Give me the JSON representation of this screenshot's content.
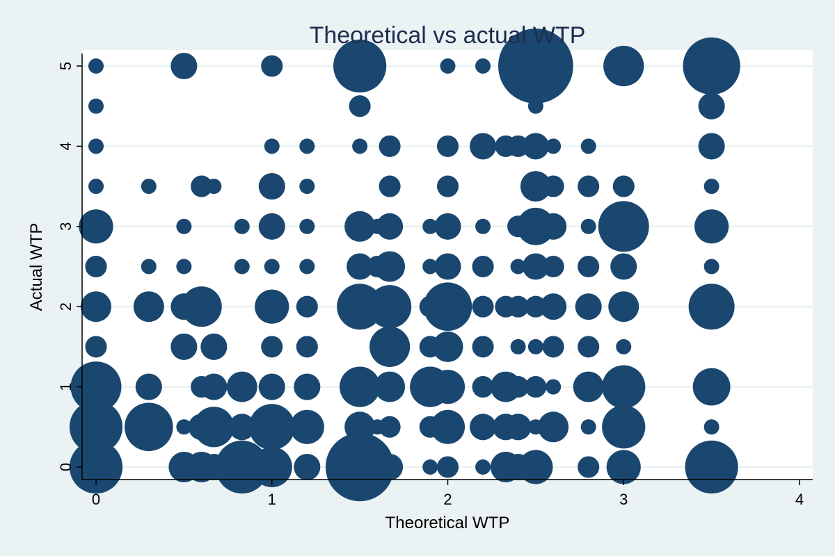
{
  "chart_data": {
    "type": "scatter",
    "title": "Theoretical vs actual WTP",
    "xlabel": "Theoretical WTP",
    "ylabel": "Actual WTP",
    "xlim": [
      -0.08,
      4.08
    ],
    "ylim": [
      -0.3,
      5.3
    ],
    "x_ticks": [
      0,
      1,
      2,
      3,
      4
    ],
    "y_ticks": [
      0,
      1,
      2,
      3,
      4,
      5
    ],
    "grid": "horizontal",
    "marker_color": "#1a476f",
    "background_color": "#eaf2f3",
    "plot_background_color": "#ffffff",
    "gridline_color": "#eaf2f3",
    "size_meaning": "marker area proportional to number of observations (relative weight)",
    "points": [
      {
        "x": 0,
        "y": 5,
        "w": 1
      },
      {
        "x": 0.5,
        "y": 5,
        "w": 3
      },
      {
        "x": 1,
        "y": 5,
        "w": 2
      },
      {
        "x": 1.5,
        "y": 5,
        "w": 12
      },
      {
        "x": 1.6,
        "y": 5,
        "w": 1
      },
      {
        "x": 2,
        "y": 5,
        "w": 1
      },
      {
        "x": 2.2,
        "y": 5,
        "w": 1
      },
      {
        "x": 2.5,
        "y": 5,
        "w": 24
      },
      {
        "x": 3,
        "y": 5,
        "w": 7
      },
      {
        "x": 3.5,
        "y": 5,
        "w": 14
      },
      {
        "x": 0,
        "y": 4.5,
        "w": 1
      },
      {
        "x": 1.5,
        "y": 4.5,
        "w": 2
      },
      {
        "x": 2.5,
        "y": 4.5,
        "w": 1
      },
      {
        "x": 3.5,
        "y": 4.5,
        "w": 3
      },
      {
        "x": 0,
        "y": 4,
        "w": 1
      },
      {
        "x": 1,
        "y": 4,
        "w": 1
      },
      {
        "x": 1.2,
        "y": 4,
        "w": 1
      },
      {
        "x": 1.5,
        "y": 4,
        "w": 1
      },
      {
        "x": 1.67,
        "y": 4,
        "w": 2
      },
      {
        "x": 2,
        "y": 4,
        "w": 2
      },
      {
        "x": 2.2,
        "y": 4,
        "w": 3
      },
      {
        "x": 2.33,
        "y": 4,
        "w": 2
      },
      {
        "x": 2.4,
        "y": 4,
        "w": 2
      },
      {
        "x": 2.5,
        "y": 4,
        "w": 3
      },
      {
        "x": 2.6,
        "y": 4,
        "w": 1
      },
      {
        "x": 2.8,
        "y": 4,
        "w": 1
      },
      {
        "x": 3.5,
        "y": 4,
        "w": 3
      },
      {
        "x": 0,
        "y": 3.5,
        "w": 1
      },
      {
        "x": 0.3,
        "y": 3.5,
        "w": 1
      },
      {
        "x": 0.6,
        "y": 3.5,
        "w": 2
      },
      {
        "x": 0.67,
        "y": 3.5,
        "w": 1
      },
      {
        "x": 1,
        "y": 3.5,
        "w": 3
      },
      {
        "x": 1.2,
        "y": 3.5,
        "w": 1
      },
      {
        "x": 1.67,
        "y": 3.5,
        "w": 2
      },
      {
        "x": 2,
        "y": 3.5,
        "w": 2
      },
      {
        "x": 2.5,
        "y": 3.5,
        "w": 4
      },
      {
        "x": 2.6,
        "y": 3.5,
        "w": 2
      },
      {
        "x": 2.8,
        "y": 3.5,
        "w": 2
      },
      {
        "x": 3,
        "y": 3.5,
        "w": 2
      },
      {
        "x": 3.5,
        "y": 3.5,
        "w": 1
      },
      {
        "x": 0,
        "y": 3,
        "w": 5
      },
      {
        "x": 0.5,
        "y": 3,
        "w": 1
      },
      {
        "x": 0.83,
        "y": 3,
        "w": 1
      },
      {
        "x": 1,
        "y": 3,
        "w": 3
      },
      {
        "x": 1.2,
        "y": 3,
        "w": 1
      },
      {
        "x": 1.5,
        "y": 3,
        "w": 4
      },
      {
        "x": 1.6,
        "y": 3,
        "w": 1
      },
      {
        "x": 1.67,
        "y": 3,
        "w": 3
      },
      {
        "x": 1.9,
        "y": 3,
        "w": 1
      },
      {
        "x": 2,
        "y": 3,
        "w": 3
      },
      {
        "x": 2.2,
        "y": 3,
        "w": 1
      },
      {
        "x": 2.4,
        "y": 3,
        "w": 2
      },
      {
        "x": 2.5,
        "y": 3,
        "w": 6
      },
      {
        "x": 2.6,
        "y": 3,
        "w": 3
      },
      {
        "x": 2.8,
        "y": 3,
        "w": 1
      },
      {
        "x": 3,
        "y": 3,
        "w": 11
      },
      {
        "x": 3.5,
        "y": 3,
        "w": 5
      },
      {
        "x": 0,
        "y": 2.5,
        "w": 2
      },
      {
        "x": 0.3,
        "y": 2.5,
        "w": 1
      },
      {
        "x": 0.5,
        "y": 2.5,
        "w": 1
      },
      {
        "x": 0.83,
        "y": 2.5,
        "w": 1
      },
      {
        "x": 1,
        "y": 2.5,
        "w": 1
      },
      {
        "x": 1.2,
        "y": 2.5,
        "w": 1
      },
      {
        "x": 1.5,
        "y": 2.5,
        "w": 3
      },
      {
        "x": 1.6,
        "y": 2.5,
        "w": 2
      },
      {
        "x": 1.67,
        "y": 2.5,
        "w": 4
      },
      {
        "x": 1.9,
        "y": 2.5,
        "w": 1
      },
      {
        "x": 2,
        "y": 2.5,
        "w": 3
      },
      {
        "x": 2.2,
        "y": 2.5,
        "w": 2
      },
      {
        "x": 2.4,
        "y": 2.5,
        "w": 1
      },
      {
        "x": 2.5,
        "y": 2.5,
        "w": 3
      },
      {
        "x": 2.6,
        "y": 2.5,
        "w": 2
      },
      {
        "x": 2.8,
        "y": 2.5,
        "w": 2
      },
      {
        "x": 3,
        "y": 2.5,
        "w": 3
      },
      {
        "x": 3.5,
        "y": 2.5,
        "w": 1
      },
      {
        "x": 0,
        "y": 2,
        "w": 4
      },
      {
        "x": 0.3,
        "y": 2,
        "w": 4
      },
      {
        "x": 0.5,
        "y": 2,
        "w": 3
      },
      {
        "x": 0.6,
        "y": 2,
        "w": 7
      },
      {
        "x": 1,
        "y": 2,
        "w": 5
      },
      {
        "x": 1.2,
        "y": 2,
        "w": 2
      },
      {
        "x": 1.5,
        "y": 2,
        "w": 9
      },
      {
        "x": 1.6,
        "y": 2,
        "w": 3
      },
      {
        "x": 1.67,
        "y": 2,
        "w": 8
      },
      {
        "x": 1.9,
        "y": 2,
        "w": 2
      },
      {
        "x": 2,
        "y": 2,
        "w": 10
      },
      {
        "x": 2.2,
        "y": 2,
        "w": 2
      },
      {
        "x": 2.33,
        "y": 2,
        "w": 2
      },
      {
        "x": 2.4,
        "y": 2,
        "w": 2
      },
      {
        "x": 2.5,
        "y": 2,
        "w": 2
      },
      {
        "x": 2.6,
        "y": 2,
        "w": 3
      },
      {
        "x": 2.8,
        "y": 2,
        "w": 3
      },
      {
        "x": 3,
        "y": 2,
        "w": 4
      },
      {
        "x": 3.5,
        "y": 2,
        "w": 9
      },
      {
        "x": 0,
        "y": 1.5,
        "w": 2
      },
      {
        "x": 0.5,
        "y": 1.5,
        "w": 3
      },
      {
        "x": 0.67,
        "y": 1.5,
        "w": 3
      },
      {
        "x": 1,
        "y": 1.5,
        "w": 2
      },
      {
        "x": 1.2,
        "y": 1.5,
        "w": 2
      },
      {
        "x": 1.67,
        "y": 1.5,
        "w": 7
      },
      {
        "x": 1.9,
        "y": 1.5,
        "w": 2
      },
      {
        "x": 2,
        "y": 1.5,
        "w": 4
      },
      {
        "x": 2.2,
        "y": 1.5,
        "w": 2
      },
      {
        "x": 2.4,
        "y": 1.5,
        "w": 1
      },
      {
        "x": 2.5,
        "y": 1.5,
        "w": 1
      },
      {
        "x": 2.6,
        "y": 1.5,
        "w": 2
      },
      {
        "x": 2.8,
        "y": 1.5,
        "w": 2
      },
      {
        "x": 3,
        "y": 1.5,
        "w": 1
      },
      {
        "x": 0,
        "y": 1,
        "w": 11
      },
      {
        "x": 0.3,
        "y": 1,
        "w": 3
      },
      {
        "x": 0.6,
        "y": 1,
        "w": 2
      },
      {
        "x": 0.67,
        "y": 1,
        "w": 3
      },
      {
        "x": 0.83,
        "y": 1,
        "w": 4
      },
      {
        "x": 1,
        "y": 1,
        "w": 3
      },
      {
        "x": 1.2,
        "y": 1,
        "w": 3
      },
      {
        "x": 1.5,
        "y": 1,
        "w": 7
      },
      {
        "x": 1.67,
        "y": 1,
        "w": 4
      },
      {
        "x": 1.9,
        "y": 1,
        "w": 7
      },
      {
        "x": 2,
        "y": 1,
        "w": 5
      },
      {
        "x": 2.2,
        "y": 1,
        "w": 2
      },
      {
        "x": 2.33,
        "y": 1,
        "w": 4
      },
      {
        "x": 2.4,
        "y": 1,
        "w": 2
      },
      {
        "x": 2.5,
        "y": 1,
        "w": 2
      },
      {
        "x": 2.6,
        "y": 1,
        "w": 1
      },
      {
        "x": 2.8,
        "y": 1,
        "w": 4
      },
      {
        "x": 3,
        "y": 1,
        "w": 8
      },
      {
        "x": 3.5,
        "y": 1,
        "w": 6
      },
      {
        "x": 0,
        "y": 0.5,
        "w": 12
      },
      {
        "x": 0.3,
        "y": 0.5,
        "w": 10
      },
      {
        "x": 0.5,
        "y": 0.5,
        "w": 1
      },
      {
        "x": 0.6,
        "y": 0.5,
        "w": 3
      },
      {
        "x": 0.67,
        "y": 0.5,
        "w": 7
      },
      {
        "x": 0.83,
        "y": 0.5,
        "w": 3
      },
      {
        "x": 1,
        "y": 0.5,
        "w": 9
      },
      {
        "x": 1.2,
        "y": 0.5,
        "w": 5
      },
      {
        "x": 1.5,
        "y": 0.5,
        "w": 4
      },
      {
        "x": 1.6,
        "y": 0.5,
        "w": 1
      },
      {
        "x": 1.67,
        "y": 0.5,
        "w": 2
      },
      {
        "x": 1.9,
        "y": 0.5,
        "w": 2
      },
      {
        "x": 2,
        "y": 0.5,
        "w": 5
      },
      {
        "x": 2.2,
        "y": 0.5,
        "w": 3
      },
      {
        "x": 2.33,
        "y": 0.5,
        "w": 3
      },
      {
        "x": 2.4,
        "y": 0.5,
        "w": 3
      },
      {
        "x": 2.5,
        "y": 0.5,
        "w": 1
      },
      {
        "x": 2.6,
        "y": 0.5,
        "w": 4
      },
      {
        "x": 2.8,
        "y": 0.5,
        "w": 1
      },
      {
        "x": 3,
        "y": 0.5,
        "w": 8
      },
      {
        "x": 3.5,
        "y": 0.5,
        "w": 1
      },
      {
        "x": 0,
        "y": 0,
        "w": 12
      },
      {
        "x": 0.5,
        "y": 0,
        "w": 4
      },
      {
        "x": 0.6,
        "y": 0,
        "w": 4
      },
      {
        "x": 0.67,
        "y": 0,
        "w": 3
      },
      {
        "x": 0.83,
        "y": 0,
        "w": 12
      },
      {
        "x": 1,
        "y": 0,
        "w": 7
      },
      {
        "x": 1.2,
        "y": 0,
        "w": 3
      },
      {
        "x": 1.5,
        "y": 0,
        "w": 20
      },
      {
        "x": 1.67,
        "y": 0,
        "w": 3
      },
      {
        "x": 1.9,
        "y": 0,
        "w": 1
      },
      {
        "x": 2,
        "y": 0,
        "w": 2
      },
      {
        "x": 2.2,
        "y": 0,
        "w": 1
      },
      {
        "x": 2.33,
        "y": 0,
        "w": 4
      },
      {
        "x": 2.4,
        "y": 0,
        "w": 3
      },
      {
        "x": 2.5,
        "y": 0,
        "w": 5
      },
      {
        "x": 2.8,
        "y": 0,
        "w": 2
      },
      {
        "x": 3,
        "y": 0,
        "w": 5
      },
      {
        "x": 3.5,
        "y": 0,
        "w": 12
      }
    ]
  }
}
